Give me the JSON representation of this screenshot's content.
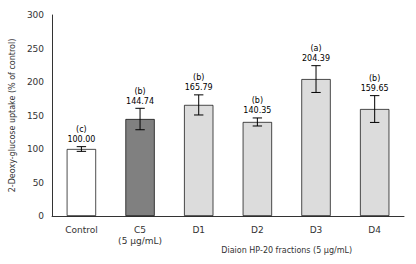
{
  "chart_data": {
    "type": "bar",
    "categories": [
      "Control",
      "C5\n(5 μg/mL)",
      "D1",
      "D2",
      "D3",
      "D4"
    ],
    "values": [
      100.0,
      144.74,
      165.79,
      140.35,
      204.39,
      159.65
    ],
    "errors": [
      3.5,
      16.0,
      15.0,
      6.0,
      20.0,
      20.0
    ],
    "colors": [
      "#ffffff",
      "#808080",
      "#dcdcdc",
      "#dcdcdc",
      "#dcdcdc",
      "#dcdcdc"
    ],
    "data_labels": true,
    "value_labels": [
      "100.00",
      "144.74",
      "165.79",
      "140.35",
      "204.39",
      "159.65"
    ],
    "annotations": [
      "(c)",
      "(b)",
      "(b)",
      "(b)",
      "(a)",
      "(b)"
    ],
    "xlabel": "Diaion HP-20 fractions (5 μg/mL)",
    "ylabel": "2-Deoxy-glucose uptake (% of control)",
    "ylim": [
      0,
      300
    ],
    "yticks": [
      0,
      50,
      100,
      150,
      200,
      250,
      300
    ],
    "grid": false
  }
}
